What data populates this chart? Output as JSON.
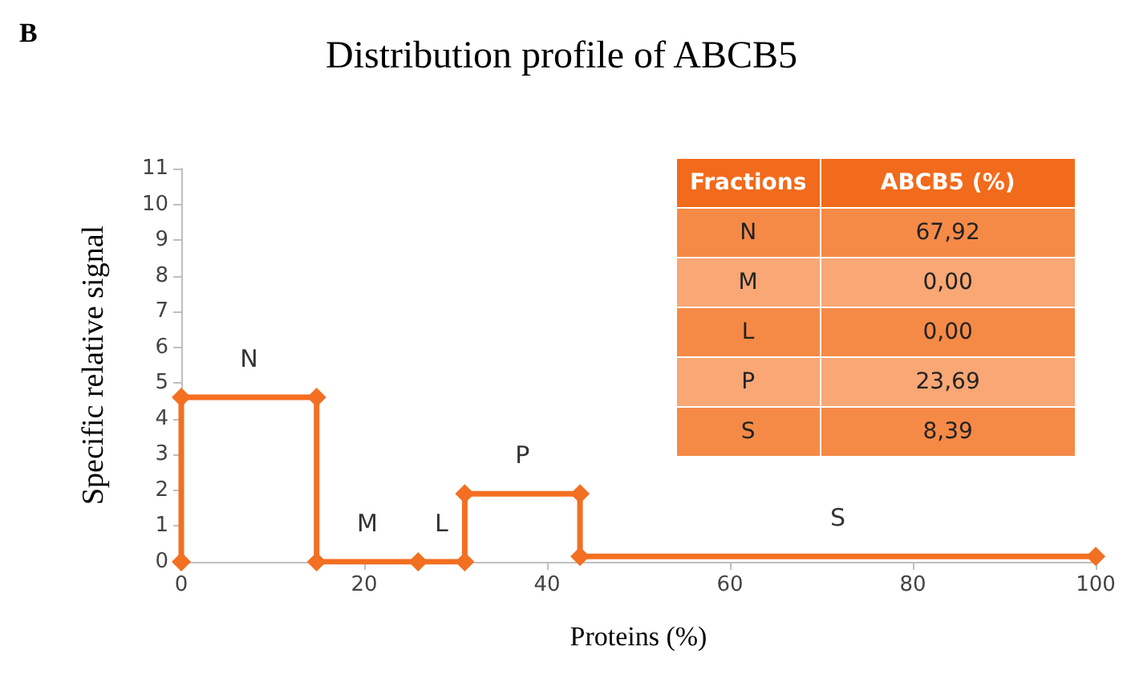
{
  "chart_data": [
    {
      "type": "line",
      "title": "Distribution profile of ABCB5",
      "xlabel": "Proteins (%)",
      "ylabel": "Specific relative signal",
      "series": [
        {
          "color": "#f36f21",
          "x": [
            0,
            0,
            14.8,
            14.8,
            25.9,
            31,
            31,
            43.6,
            43.6,
            100
          ],
          "values": [
            0,
            4.6,
            4.6,
            0,
            0,
            0,
            1.9,
            1.9,
            0.15,
            0.15
          ]
        }
      ],
      "xlim": [
        0,
        100
      ],
      "xticks": [
        0,
        20,
        40,
        60,
        80,
        100
      ],
      "ylim": [
        0,
        11
      ],
      "yticks": [
        0,
        1,
        2,
        3,
        4,
        5,
        6,
        7,
        8,
        9,
        10,
        11
      ],
      "grid": false,
      "marker": "diamond",
      "line_style": "solid",
      "annotations": [
        "B",
        "N",
        "M",
        "L",
        "P",
        "S"
      ]
    },
    {
      "type": "other",
      "annotations": [
        "Fractions",
        "ABCB5 (%)"
      ],
      "categories": [
        "N",
        "M",
        "L",
        "P",
        "S"
      ],
      "value_labels": [
        "67,92",
        "0,00",
        "0,00",
        "23,69",
        "8,39"
      ],
      "color": "#f26a1b",
      "colors": [
        "#f58a47",
        "#f8a775",
        "#f58a47",
        "#f8a775",
        "#f58a47"
      ]
    }
  ]
}
